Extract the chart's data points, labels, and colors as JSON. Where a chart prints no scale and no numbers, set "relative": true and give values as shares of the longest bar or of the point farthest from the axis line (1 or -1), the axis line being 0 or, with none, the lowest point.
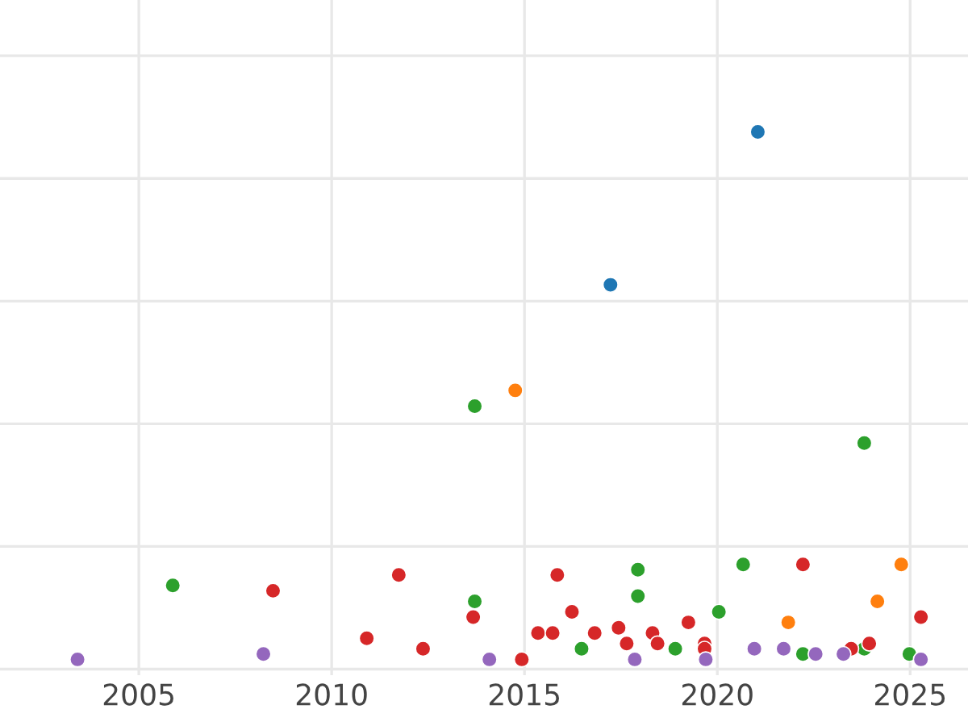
{
  "chart_data": {
    "type": "scatter",
    "relative": true,
    "xlim": [
      2001.4,
      2026.5
    ],
    "xticks": [
      2005,
      2010,
      2015,
      2020,
      2025
    ],
    "tick_labels": "x",
    "grid": true,
    "marker": "circle",
    "series": [
      {
        "color": "#1f77b4",
        "x": [
          2021.05,
          2017.23
        ],
        "values": [
          1.0,
          0.71
        ]
      },
      {
        "color": "#ff7f0e",
        "x": [
          2014.76,
          2021.84,
          2024.77,
          2024.15
        ],
        "values": [
          0.51,
          0.07,
          0.18,
          0.11
        ]
      },
      {
        "color": "#2ca02c",
        "x": [
          2013.71,
          2023.81,
          2005.88,
          2013.71,
          2017.94,
          2017.94,
          2020.67,
          2020.04,
          2016.48,
          2018.91,
          2022.22,
          2023.81,
          2024.98
        ],
        "values": [
          0.48,
          0.41,
          0.14,
          0.11,
          0.17,
          0.12,
          0.18,
          0.09,
          0.02,
          0.02,
          0.01,
          0.02,
          0.01
        ]
      },
      {
        "color": "#d62728",
        "x": [
          2008.48,
          2011.74,
          2010.91,
          2012.37,
          2013.67,
          2014.93,
          2015.85,
          2015.35,
          2015.73,
          2016.23,
          2016.82,
          2017.44,
          2017.65,
          2018.32,
          2018.45,
          2019.25,
          2019.67,
          2019.67,
          2022.22,
          2023.47,
          2023.94,
          2025.28
        ],
        "values": [
          0.13,
          0.16,
          0.04,
          0.02,
          0.08,
          0.0,
          0.16,
          0.05,
          0.05,
          0.09,
          0.05,
          0.06,
          0.03,
          0.05,
          0.03,
          0.07,
          0.03,
          0.02,
          0.18,
          0.02,
          0.03,
          0.08
        ]
      },
      {
        "color": "#9467bd",
        "x": [
          2003.41,
          2008.23,
          2014.09,
          2017.86,
          2019.7,
          2020.96,
          2021.72,
          2022.55,
          2023.27,
          2025.28
        ],
        "values": [
          0.0,
          0.01,
          0.0,
          0.0,
          0.0,
          0.02,
          0.02,
          0.01,
          0.01,
          0.0
        ]
      }
    ]
  }
}
